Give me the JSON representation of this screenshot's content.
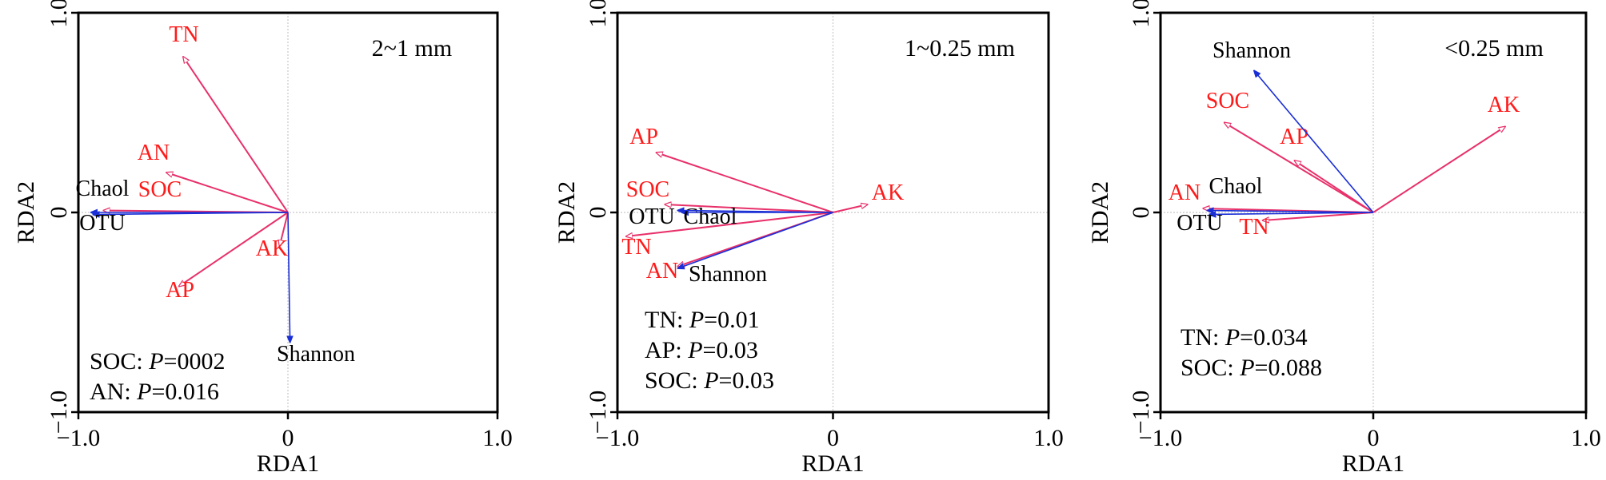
{
  "chart_data": [
    {
      "type": "scatter",
      "title": "2~1 mm",
      "xlabel": "RDA1",
      "ylabel": "RDA2",
      "xlim": [
        -1.0,
        1.0
      ],
      "ylim": [
        -1.0,
        1.0
      ],
      "xticks": [
        "−1.0",
        "0",
        "1.0"
      ],
      "yticks": [
        "−1.0",
        "0",
        "1.0"
      ],
      "grid": false,
      "colors": {
        "environment": "#e8306a",
        "community": "#1a2fd6"
      },
      "vectors": [
        {
          "name": "TN",
          "group": "environment",
          "x": -0.5,
          "y": 0.78
        },
        {
          "name": "AN",
          "group": "environment",
          "x": -0.58,
          "y": 0.2
        },
        {
          "name": "SOC",
          "group": "environment",
          "x": -0.88,
          "y": 0.01
        },
        {
          "name": "AP",
          "group": "environment",
          "x": -0.52,
          "y": -0.37
        },
        {
          "name": "AK",
          "group": "environment",
          "x": -0.04,
          "y": -0.17
        },
        {
          "name": "Chaol",
          "group": "community",
          "x": -0.94,
          "y": 0.0
        },
        {
          "name": "OTU",
          "group": "community",
          "x": -0.93,
          "y": -0.01
        },
        {
          "name": "Shannon",
          "group": "community",
          "x": 0.01,
          "y": -0.65
        }
      ],
      "stats": [
        {
          "label": "SOC: ",
          "p_label": "P",
          "value": "=0002"
        },
        {
          "label": "AN: ",
          "p_label": "P",
          "value": "=0.016"
        }
      ]
    },
    {
      "type": "scatter",
      "title": "1~0.25 mm",
      "xlabel": "RDA1",
      "ylabel": "RDA2",
      "xlim": [
        -1.0,
        1.0
      ],
      "ylim": [
        -1.0,
        1.0
      ],
      "xticks": [
        "−1.0",
        "0",
        "1.0"
      ],
      "yticks": [
        "−1.0",
        "0",
        "1.0"
      ],
      "grid": false,
      "colors": {
        "environment": "#e8306a",
        "community": "#1a2fd6"
      },
      "vectors": [
        {
          "name": "AP",
          "group": "environment",
          "x": -0.82,
          "y": 0.3
        },
        {
          "name": "SOC",
          "group": "environment",
          "x": -0.78,
          "y": 0.04
        },
        {
          "name": "TN",
          "group": "environment",
          "x": -0.96,
          "y": -0.12
        },
        {
          "name": "AN",
          "group": "environment",
          "x": -0.72,
          "y": -0.27
        },
        {
          "name": "AK",
          "group": "environment",
          "x": 0.16,
          "y": 0.04
        },
        {
          "name": "Chaol",
          "group": "community",
          "x": -0.7,
          "y": 0.0
        },
        {
          "name": "OTU",
          "group": "community",
          "x": -0.72,
          "y": 0.01
        },
        {
          "name": "Shannon",
          "group": "community",
          "x": -0.72,
          "y": -0.28
        }
      ],
      "stats": [
        {
          "label": "TN: ",
          "p_label": "P",
          "value": "=0.01"
        },
        {
          "label": "AP: ",
          "p_label": "P",
          "value": "=0.03"
        },
        {
          "label": "SOC: ",
          "p_label": "P",
          "value": "=0.03"
        }
      ]
    },
    {
      "type": "scatter",
      "title": "<0.25 mm",
      "xlabel": "RDA1",
      "ylabel": "RDA2",
      "xlim": [
        -1.0,
        1.0
      ],
      "ylim": [
        -1.0,
        1.0
      ],
      "xticks": [
        "−1.0",
        "0",
        "1.0"
      ],
      "yticks": [
        "−1.0",
        "0",
        "1.0"
      ],
      "grid": false,
      "colors": {
        "environment": "#e8306a",
        "community": "#1a2fd6"
      },
      "vectors": [
        {
          "name": "SOC",
          "group": "environment",
          "x": -0.7,
          "y": 0.45
        },
        {
          "name": "AP",
          "group": "environment",
          "x": -0.37,
          "y": 0.26
        },
        {
          "name": "AK",
          "group": "environment",
          "x": 0.62,
          "y": 0.43
        },
        {
          "name": "AN",
          "group": "environment",
          "x": -0.8,
          "y": 0.02
        },
        {
          "name": "TN",
          "group": "environment",
          "x": -0.52,
          "y": -0.04
        },
        {
          "name": "Shannon",
          "group": "community",
          "x": -0.56,
          "y": 0.71
        },
        {
          "name": "Chaol",
          "group": "community",
          "x": -0.78,
          "y": 0.01
        },
        {
          "name": "OTU",
          "group": "community",
          "x": -0.77,
          "y": -0.01
        }
      ],
      "stats": [
        {
          "label": "TN: ",
          "p_label": "P",
          "value": "=0.034"
        },
        {
          "label": "SOC: ",
          "p_label": "P",
          "value": "=0.088"
        }
      ]
    }
  ]
}
